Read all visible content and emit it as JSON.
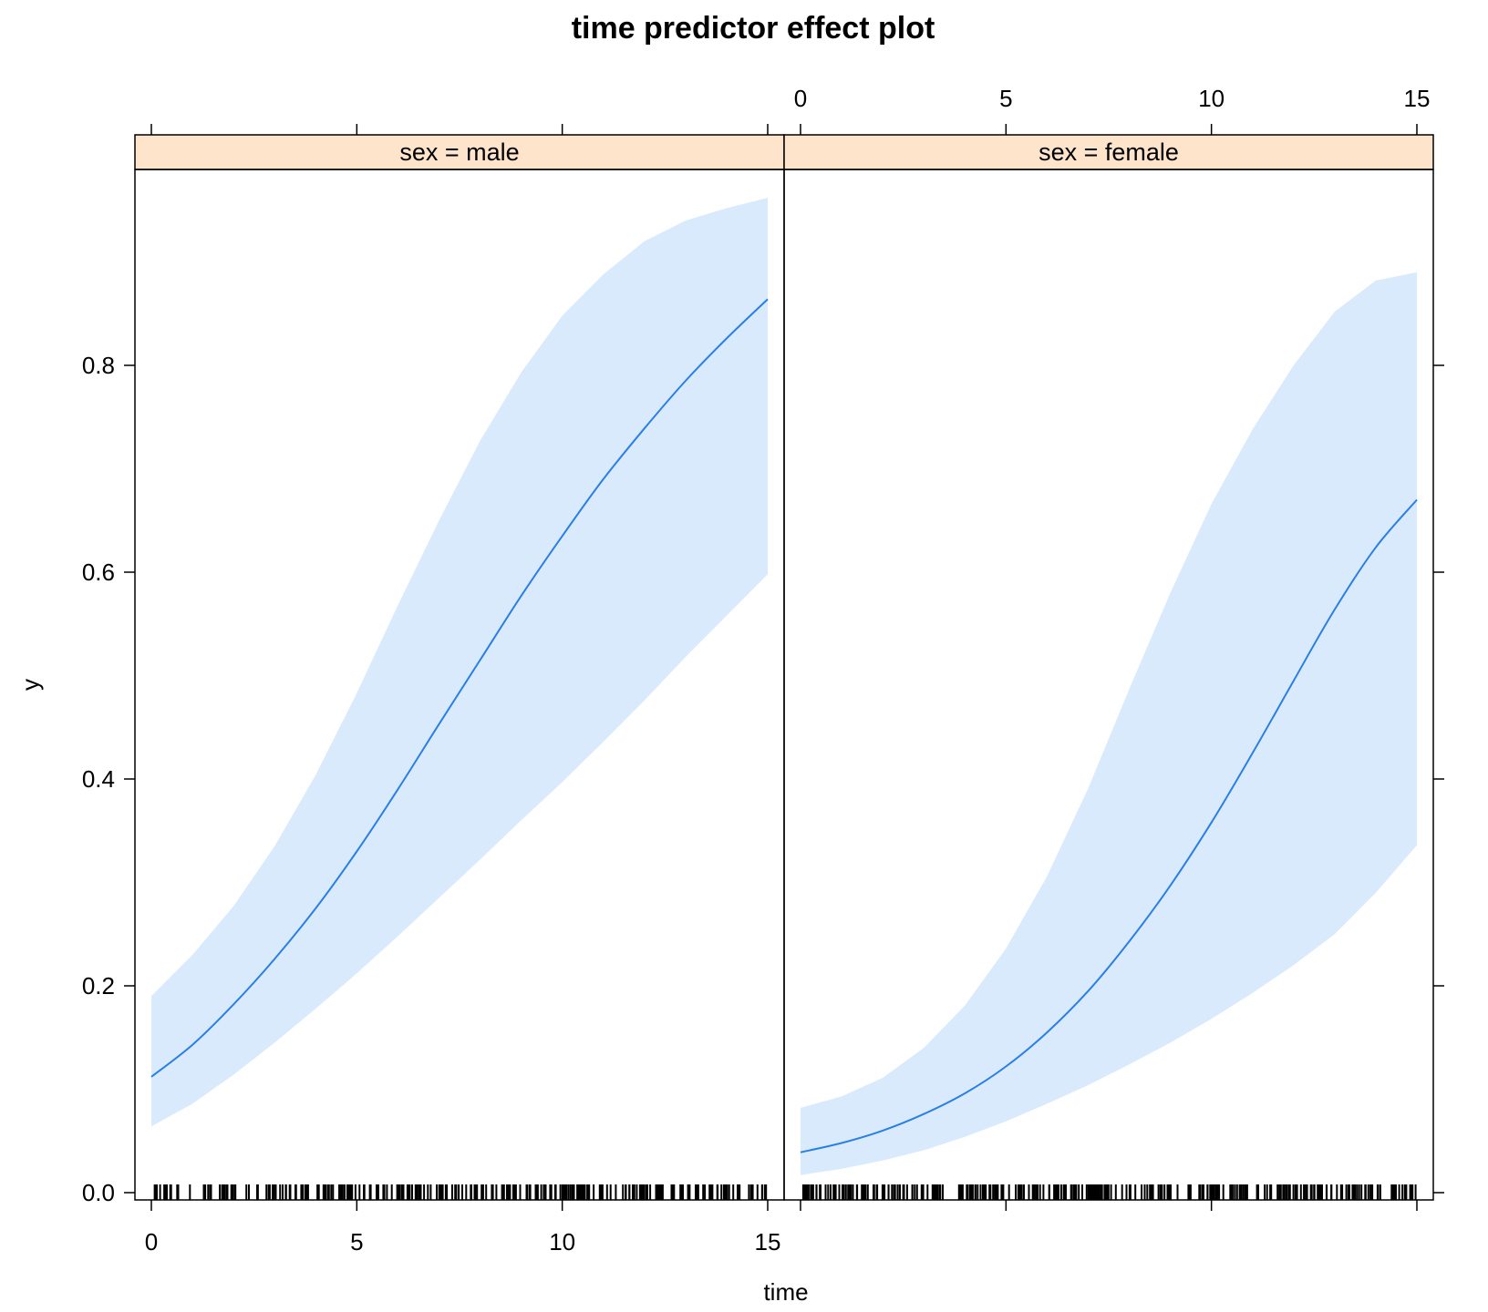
{
  "chart_data": {
    "type": "line",
    "title": "time predictor effect plot",
    "xlabel": "time",
    "ylabel": "y",
    "xlim": [
      0,
      15
    ],
    "ylim": [
      0,
      1
    ],
    "x_ticks": [
      "0",
      "5",
      "10",
      "15"
    ],
    "y_ticks": [
      "0.0",
      "0.2",
      "0.4",
      "0.6",
      "0.8"
    ],
    "grid": false,
    "colors": {
      "line": "#2a7fe6",
      "band": "#d9eafd",
      "strip": "#ffe4cc",
      "rug": "#000000"
    },
    "panels": [
      {
        "strip_label": "sex = male",
        "x": [
          0,
          1,
          2,
          3,
          4,
          5,
          6,
          7,
          8,
          9,
          10,
          11,
          12,
          13,
          14,
          15
        ],
        "fit": [
          0.112,
          0.143,
          0.182,
          0.226,
          0.275,
          0.33,
          0.39,
          0.453,
          0.515,
          0.577,
          0.635,
          0.69,
          0.739,
          0.785,
          0.826,
          0.864
        ],
        "lower": [
          0.064,
          0.086,
          0.114,
          0.145,
          0.178,
          0.212,
          0.248,
          0.285,
          0.322,
          0.36,
          0.397,
          0.436,
          0.476,
          0.518,
          0.558,
          0.598
        ],
        "upper": [
          0.19,
          0.23,
          0.277,
          0.335,
          0.404,
          0.483,
          0.568,
          0.65,
          0.727,
          0.793,
          0.848,
          0.888,
          0.92,
          0.94,
          0.952,
          0.962
        ]
      },
      {
        "strip_label": "sex = female",
        "x": [
          0,
          1,
          2,
          3,
          4,
          5,
          6,
          7,
          8,
          9,
          10,
          11,
          12,
          13,
          14,
          15
        ],
        "fit": [
          0.039,
          0.048,
          0.06,
          0.076,
          0.096,
          0.122,
          0.155,
          0.195,
          0.243,
          0.297,
          0.358,
          0.425,
          0.495,
          0.564,
          0.624,
          0.67
        ],
        "lower": [
          0.017,
          0.023,
          0.031,
          0.041,
          0.054,
          0.069,
          0.086,
          0.104,
          0.124,
          0.145,
          0.168,
          0.193,
          0.22,
          0.25,
          0.29,
          0.336
        ],
        "upper": [
          0.082,
          0.093,
          0.111,
          0.14,
          0.181,
          0.236,
          0.306,
          0.391,
          0.487,
          0.58,
          0.666,
          0.738,
          0.8,
          0.852,
          0.882,
          0.89
        ]
      }
    ]
  }
}
